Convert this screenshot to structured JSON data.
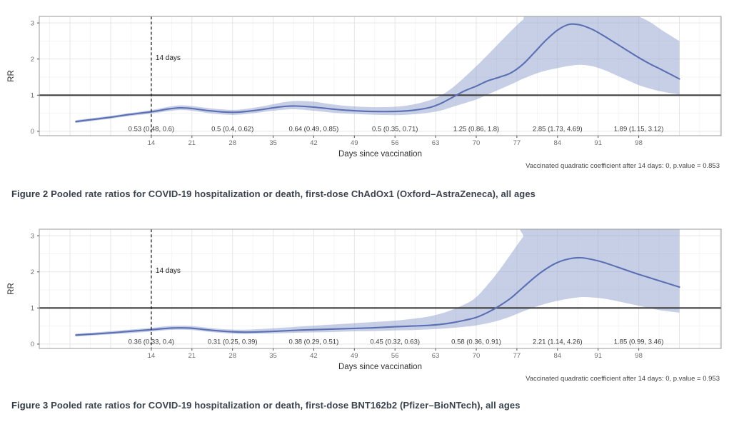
{
  "page": {
    "background": "#ffffff"
  },
  "figures": [
    {
      "caption_label": "Figure 2",
      "caption_body": " Pooled rate ratios for COVID-19 hospitalization or death, first-dose ChAdOx1 (Oxford–AstraZeneca), all ages"
    },
    {
      "caption_label": "Figure 3",
      "caption_body": " Pooled rate ratios for COVID-19 hospitalization or death, first-dose BNT162b2 (Pfizer–BioNTech), all ages"
    }
  ],
  "chart_data": [
    {
      "type": "line",
      "title": "",
      "xlabel": "Days since vaccination",
      "ylabel": "RR",
      "xlim": [
        -5.3,
        112.2
      ],
      "ylim": [
        -0.12,
        3.18
      ],
      "x_ticks": [
        14,
        21,
        28,
        35,
        42,
        49,
        56,
        63,
        70,
        77,
        84,
        91,
        98
      ],
      "y_ticks": [
        0,
        1,
        2,
        3
      ],
      "grid": {
        "x_major_step": 7,
        "x_minor_step": 3.5,
        "y_minor_step": 0.5,
        "on": true
      },
      "hline": {
        "y": 1
      },
      "vline": {
        "x": 14,
        "label": "14 days",
        "style": "dashed"
      },
      "colors": {
        "line": "#5b6fb3",
        "ribbon": "#8fa0cf",
        "hline": "#3f3f3f",
        "vline": "#1c1c1c"
      },
      "footnote": "Vaccinated quadratic coefficient after 14 days: 0, p.value = 0.853",
      "period_estimates": [
        {
          "day": 14,
          "label": "0.53 (0.48, 0.6)"
        },
        {
          "day": 28,
          "label": "0.5 (0.4, 0.62)"
        },
        {
          "day": 42,
          "label": "0.64 (0.49, 0.85)"
        },
        {
          "day": 56,
          "label": "0.5 (0.35, 0.71)"
        },
        {
          "day": 70,
          "label": "1.25 (0.86, 1.8)"
        },
        {
          "day": 84,
          "label": "2.85 (1.73, 4.69)"
        },
        {
          "day": 98,
          "label": "1.89 (1.15, 3.12)"
        }
      ],
      "series": [
        {
          "name": "pooled-rr-smooth",
          "points": [
            [
              1,
              0.27
            ],
            [
              4,
              0.33
            ],
            [
              7,
              0.39
            ],
            [
              10,
              0.46
            ],
            [
              14,
              0.54
            ],
            [
              17,
              0.62
            ],
            [
              19,
              0.65
            ],
            [
              21,
              0.63
            ],
            [
              24,
              0.57
            ],
            [
              27,
              0.53
            ],
            [
              29,
              0.53
            ],
            [
              32,
              0.58
            ],
            [
              35,
              0.65
            ],
            [
              37,
              0.69
            ],
            [
              39,
              0.7
            ],
            [
              42,
              0.67
            ],
            [
              45,
              0.62
            ],
            [
              48,
              0.58
            ],
            [
              52,
              0.55
            ],
            [
              56,
              0.55
            ],
            [
              59,
              0.58
            ],
            [
              62,
              0.66
            ],
            [
              64,
              0.78
            ],
            [
              66,
              0.95
            ],
            [
              68,
              1.12
            ],
            [
              70,
              1.25
            ],
            [
              72,
              1.4
            ],
            [
              74,
              1.5
            ],
            [
              76,
              1.62
            ],
            [
              78,
              1.85
            ],
            [
              80,
              2.18
            ],
            [
              82,
              2.52
            ],
            [
              84,
              2.8
            ],
            [
              86,
              2.96
            ],
            [
              88,
              2.94
            ],
            [
              90,
              2.82
            ],
            [
              92,
              2.64
            ],
            [
              94,
              2.44
            ],
            [
              96,
              2.24
            ],
            [
              98,
              2.04
            ],
            [
              100,
              1.86
            ],
            [
              102,
              1.7
            ],
            [
              105,
              1.45
            ]
          ]
        }
      ],
      "ribbon": {
        "upper": [
          [
            1,
            0.31
          ],
          [
            4,
            0.37
          ],
          [
            7,
            0.43
          ],
          [
            10,
            0.5
          ],
          [
            14,
            0.59
          ],
          [
            17,
            0.68
          ],
          [
            19,
            0.72
          ],
          [
            21,
            0.7
          ],
          [
            24,
            0.64
          ],
          [
            27,
            0.6
          ],
          [
            29,
            0.6
          ],
          [
            32,
            0.66
          ],
          [
            35,
            0.75
          ],
          [
            37,
            0.81
          ],
          [
            39,
            0.84
          ],
          [
            42,
            0.82
          ],
          [
            45,
            0.75
          ],
          [
            48,
            0.7
          ],
          [
            52,
            0.67
          ],
          [
            56,
            0.68
          ],
          [
            59,
            0.74
          ],
          [
            62,
            0.86
          ],
          [
            64,
            1.0
          ],
          [
            66,
            1.22
          ],
          [
            68,
            1.5
          ],
          [
            70,
            1.8
          ],
          [
            72,
            2.12
          ],
          [
            74,
            2.45
          ],
          [
            76,
            2.78
          ],
          [
            78,
            3.08
          ],
          [
            80,
            3.3
          ],
          [
            96,
            3.3
          ],
          [
            98,
            3.18
          ],
          [
            100,
            3.02
          ],
          [
            102,
            2.8
          ],
          [
            105,
            2.5
          ]
        ],
        "lower": [
          [
            1,
            0.23
          ],
          [
            4,
            0.29
          ],
          [
            7,
            0.35
          ],
          [
            10,
            0.42
          ],
          [
            14,
            0.49
          ],
          [
            17,
            0.56
          ],
          [
            19,
            0.59
          ],
          [
            21,
            0.57
          ],
          [
            24,
            0.5
          ],
          [
            27,
            0.46
          ],
          [
            29,
            0.46
          ],
          [
            32,
            0.51
          ],
          [
            35,
            0.57
          ],
          [
            37,
            0.6
          ],
          [
            39,
            0.61
          ],
          [
            42,
            0.57
          ],
          [
            45,
            0.52
          ],
          [
            48,
            0.49
          ],
          [
            52,
            0.46
          ],
          [
            56,
            0.45
          ],
          [
            59,
            0.47
          ],
          [
            62,
            0.52
          ],
          [
            64,
            0.58
          ],
          [
            66,
            0.68
          ],
          [
            68,
            0.78
          ],
          [
            70,
            0.88
          ],
          [
            72,
            1.02
          ],
          [
            74,
            1.16
          ],
          [
            76,
            1.3
          ],
          [
            78,
            1.45
          ],
          [
            80,
            1.58
          ],
          [
            82,
            1.68
          ],
          [
            84,
            1.75
          ],
          [
            86,
            1.81
          ],
          [
            88,
            1.84
          ],
          [
            90,
            1.8
          ],
          [
            92,
            1.7
          ],
          [
            94,
            1.56
          ],
          [
            96,
            1.42
          ],
          [
            98,
            1.28
          ],
          [
            100,
            1.18
          ],
          [
            102,
            1.1
          ],
          [
            105,
            1.02
          ]
        ]
      }
    },
    {
      "type": "line",
      "title": "",
      "xlabel": "Days since vaccination",
      "ylabel": "RR",
      "xlim": [
        -5.3,
        112.2
      ],
      "ylim": [
        -0.12,
        3.18
      ],
      "x_ticks": [
        14,
        21,
        28,
        35,
        42,
        49,
        56,
        63,
        70,
        77,
        84,
        91,
        98
      ],
      "y_ticks": [
        0,
        1,
        2,
        3
      ],
      "grid": {
        "x_major_step": 7,
        "x_minor_step": 3.5,
        "y_minor_step": 0.5,
        "on": true
      },
      "hline": {
        "y": 1
      },
      "vline": {
        "x": 14,
        "label": "14 days",
        "style": "dashed"
      },
      "colors": {
        "line": "#5b6fb3",
        "ribbon": "#8fa0cf",
        "hline": "#3f3f3f",
        "vline": "#1c1c1c"
      },
      "footnote": "Vaccinated quadratic coefficient after 14 days: 0, p.value = 0.953",
      "period_estimates": [
        {
          "day": 14,
          "label": "0.36 (0.33, 0.4)"
        },
        {
          "day": 28,
          "label": "0.31 (0.25, 0.39)"
        },
        {
          "day": 42,
          "label": "0.38 (0.29, 0.51)"
        },
        {
          "day": 56,
          "label": "0.45 (0.32, 0.63)"
        },
        {
          "day": 70,
          "label": "0.58 (0.36, 0.91)"
        },
        {
          "day": 84,
          "label": "2.21 (1.14, 4.26)"
        },
        {
          "day": 98,
          "label": "1.85 (0.99, 3.46)"
        }
      ],
      "series": [
        {
          "name": "pooled-rr-smooth",
          "points": [
            [
              1,
              0.25
            ],
            [
              4,
              0.28
            ],
            [
              7,
              0.31
            ],
            [
              10,
              0.35
            ],
            [
              14,
              0.4
            ],
            [
              17,
              0.44
            ],
            [
              19,
              0.45
            ],
            [
              21,
              0.44
            ],
            [
              24,
              0.39
            ],
            [
              27,
              0.35
            ],
            [
              30,
              0.33
            ],
            [
              33,
              0.34
            ],
            [
              36,
              0.36
            ],
            [
              40,
              0.39
            ],
            [
              44,
              0.41
            ],
            [
              48,
              0.43
            ],
            [
              52,
              0.45
            ],
            [
              56,
              0.48
            ],
            [
              59,
              0.5
            ],
            [
              62,
              0.52
            ],
            [
              65,
              0.57
            ],
            [
              68,
              0.66
            ],
            [
              70,
              0.74
            ],
            [
              72,
              0.88
            ],
            [
              74,
              1.06
            ],
            [
              76,
              1.28
            ],
            [
              78,
              1.56
            ],
            [
              80,
              1.84
            ],
            [
              82,
              2.08
            ],
            [
              84,
              2.26
            ],
            [
              86,
              2.36
            ],
            [
              88,
              2.39
            ],
            [
              90,
              2.34
            ],
            [
              92,
              2.26
            ],
            [
              94,
              2.15
            ],
            [
              96,
              2.04
            ],
            [
              98,
              1.93
            ],
            [
              100,
              1.83
            ],
            [
              102,
              1.73
            ],
            [
              105,
              1.58
            ]
          ]
        }
      ],
      "ribbon": {
        "upper": [
          [
            1,
            0.29
          ],
          [
            4,
            0.32
          ],
          [
            7,
            0.36
          ],
          [
            10,
            0.4
          ],
          [
            14,
            0.45
          ],
          [
            17,
            0.5
          ],
          [
            19,
            0.51
          ],
          [
            21,
            0.5
          ],
          [
            24,
            0.45
          ],
          [
            27,
            0.41
          ],
          [
            30,
            0.4
          ],
          [
            33,
            0.42
          ],
          [
            36,
            0.45
          ],
          [
            40,
            0.49
          ],
          [
            44,
            0.53
          ],
          [
            48,
            0.57
          ],
          [
            52,
            0.61
          ],
          [
            56,
            0.65
          ],
          [
            59,
            0.7
          ],
          [
            62,
            0.77
          ],
          [
            65,
            0.9
          ],
          [
            68,
            1.1
          ],
          [
            70,
            1.3
          ],
          [
            72,
            1.65
          ],
          [
            74,
            2.05
          ],
          [
            76,
            2.5
          ],
          [
            78,
            2.95
          ],
          [
            80,
            3.3
          ],
          [
            105,
            3.3
          ]
        ],
        "lower": [
          [
            1,
            0.21
          ],
          [
            4,
            0.24
          ],
          [
            7,
            0.27
          ],
          [
            10,
            0.3
          ],
          [
            14,
            0.35
          ],
          [
            17,
            0.39
          ],
          [
            19,
            0.4
          ],
          [
            21,
            0.39
          ],
          [
            24,
            0.34
          ],
          [
            27,
            0.3
          ],
          [
            30,
            0.28
          ],
          [
            33,
            0.29
          ],
          [
            36,
            0.3
          ],
          [
            40,
            0.32
          ],
          [
            44,
            0.33
          ],
          [
            48,
            0.35
          ],
          [
            52,
            0.36
          ],
          [
            56,
            0.38
          ],
          [
            59,
            0.39
          ],
          [
            62,
            0.41
          ],
          [
            65,
            0.44
          ],
          [
            68,
            0.48
          ],
          [
            70,
            0.52
          ],
          [
            72,
            0.58
          ],
          [
            74,
            0.66
          ],
          [
            76,
            0.77
          ],
          [
            78,
            0.9
          ],
          [
            80,
            1.02
          ],
          [
            82,
            1.12
          ],
          [
            84,
            1.2
          ],
          [
            86,
            1.26
          ],
          [
            88,
            1.3
          ],
          [
            90,
            1.29
          ],
          [
            92,
            1.26
          ],
          [
            94,
            1.2
          ],
          [
            96,
            1.13
          ],
          [
            98,
            1.06
          ],
          [
            100,
            0.99
          ],
          [
            102,
            0.93
          ],
          [
            105,
            0.87
          ]
        ]
      }
    }
  ]
}
